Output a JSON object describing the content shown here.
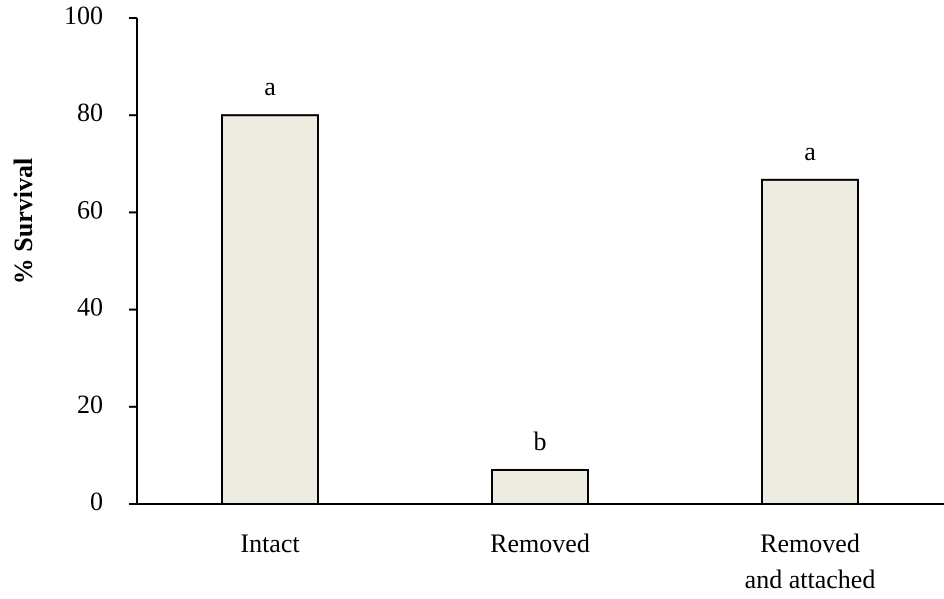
{
  "chart_data": {
    "type": "bar",
    "categories": [
      "Intact",
      "Removed",
      "Removed\nand attached"
    ],
    "values": [
      80,
      7,
      66.7
    ],
    "significance_labels": [
      "a",
      "b",
      "a"
    ],
    "ylabel": "% Survival",
    "xlabel": "",
    "title": "",
    "ylim": [
      0,
      100
    ],
    "yticks": [
      0,
      20,
      40,
      60,
      80,
      100
    ],
    "grid": false,
    "bar_color": "#eeebe0",
    "bar_edge_color": "#000000"
  }
}
